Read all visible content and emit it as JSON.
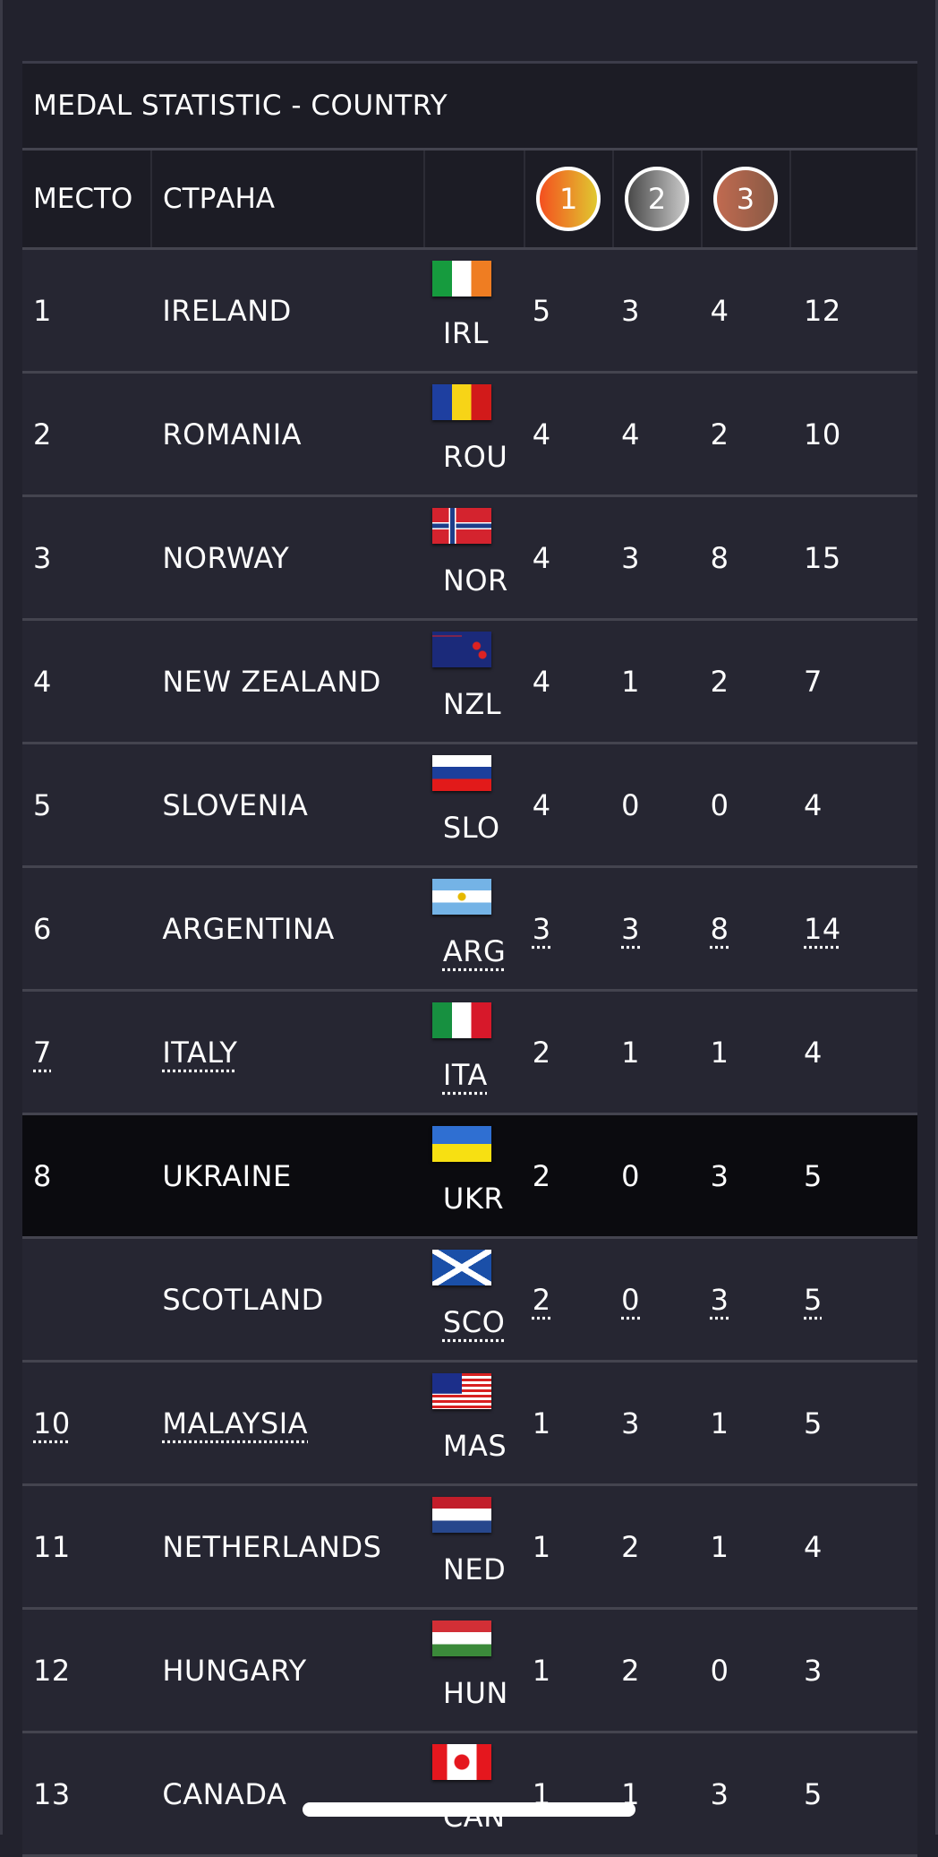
{
  "title": "MEDAL STATISTIC - COUNTRY",
  "header": {
    "rank": "МЕСТО",
    "country": "СТРАНА",
    "gold": "1",
    "silver": "2",
    "bronze": "3"
  },
  "colors": {
    "gold": "#f4731f",
    "silver": "#8a8a8a",
    "bronze": "#b06a50",
    "highlight_row": "#0b0b0f"
  },
  "rows": [
    {
      "rank": "1",
      "country": "IRELAND",
      "code": "IRL",
      "flag": "ireland-flag",
      "gold": "5",
      "silver": "3",
      "bronze": "4",
      "total": "12"
    },
    {
      "rank": "2",
      "country": "ROMANIA",
      "code": "ROU",
      "flag": "romania-flag",
      "gold": "4",
      "silver": "4",
      "bronze": "2",
      "total": "10"
    },
    {
      "rank": "3",
      "country": "NORWAY",
      "code": "NOR",
      "flag": "norway-flag",
      "gold": "4",
      "silver": "3",
      "bronze": "8",
      "total": "15"
    },
    {
      "rank": "4",
      "country": "NEW ZEALAND",
      "code": "NZL",
      "flag": "new-zealand-flag",
      "gold": "4",
      "silver": "1",
      "bronze": "2",
      "total": "7"
    },
    {
      "rank": "5",
      "country": "SLOVENIA",
      "code": "SLO",
      "flag": "slovenia-flag",
      "gold": "4",
      "silver": "0",
      "bronze": "0",
      "total": "4"
    },
    {
      "rank": "6",
      "country": "ARGENTINA",
      "code": "ARG",
      "flag": "argentina-flag",
      "gold": "3",
      "silver": "3",
      "bronze": "8",
      "total": "14"
    },
    {
      "rank": "7",
      "country": "ITALY",
      "code": "ITA",
      "flag": "italy-flag",
      "gold": "2",
      "silver": "1",
      "bronze": "1",
      "total": "4"
    },
    {
      "rank": "8",
      "country": "UKRAINE",
      "code": "UKR",
      "flag": "ukraine-flag",
      "gold": "2",
      "silver": "0",
      "bronze": "3",
      "total": "5",
      "highlighted": true
    },
    {
      "rank": "",
      "country": "SCOTLAND",
      "code": "SCO",
      "flag": "scotland-flag",
      "gold": "2",
      "silver": "0",
      "bronze": "3",
      "total": "5"
    },
    {
      "rank": "10",
      "country": "MALAYSIA",
      "code": "MAS",
      "flag": "malaysia-flag",
      "gold": "1",
      "silver": "3",
      "bronze": "1",
      "total": "5"
    },
    {
      "rank": "11",
      "country": "NETHERLANDS",
      "code": "NED",
      "flag": "netherlands-flag",
      "gold": "1",
      "silver": "2",
      "bronze": "1",
      "total": "4"
    },
    {
      "rank": "12",
      "country": "HUNGARY",
      "code": "HUN",
      "flag": "hungary-flag",
      "gold": "1",
      "silver": "2",
      "bronze": "0",
      "total": "3"
    },
    {
      "rank": "13",
      "country": "CANADA",
      "code": "CAN",
      "flag": "canada-flag",
      "gold": "1",
      "silver": "1",
      "bronze": "3",
      "total": "5"
    }
  ]
}
